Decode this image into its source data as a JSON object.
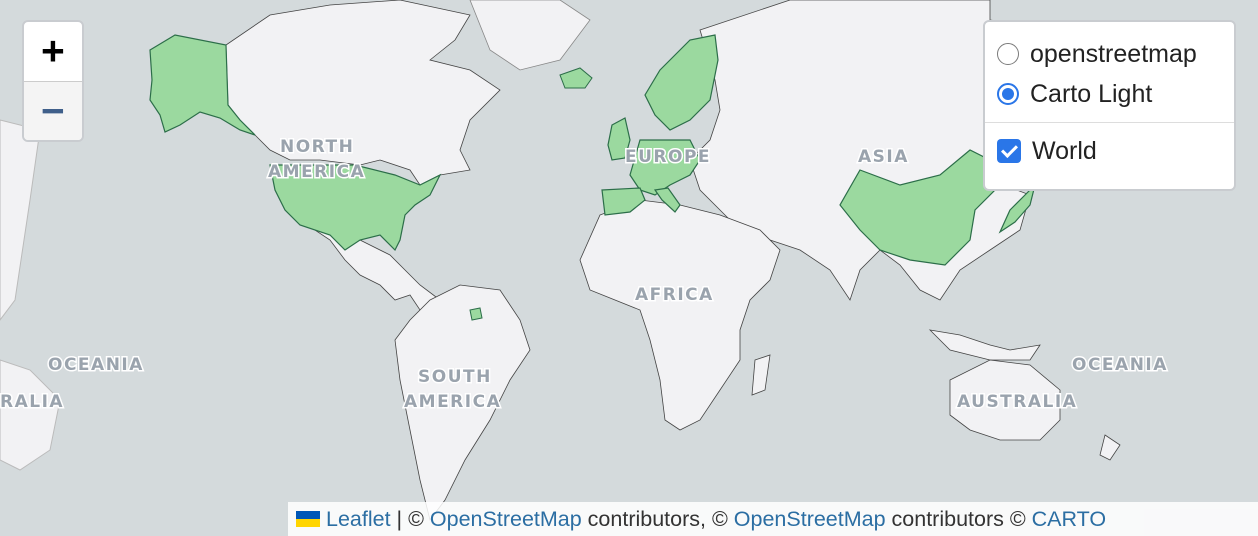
{
  "map": {
    "ocean_color": "#d4dadc",
    "land_color": "#f2f2f4",
    "highlight_fill": "#9bd99f",
    "highlight_stroke": "#2c6e49",
    "border_color": "#444444",
    "labels": {
      "north_america_1": "NORTH",
      "north_america_2": "AMERICA",
      "south_america_1": "SOUTH",
      "south_america_2": "AMERICA",
      "europe": "EUROPE",
      "asia": "ASIA",
      "africa": "AFRICA",
      "oceania_left": "OCEANIA",
      "oceania_right": "OCEANIA",
      "australia_left": "RALIA",
      "australia_right": "AUSTRALIA"
    },
    "highlighted_countries": [
      "United States",
      "Alaska",
      "Greenland",
      "Iceland",
      "Norway",
      "Sweden",
      "Finland",
      "United Kingdom",
      "Ireland",
      "France",
      "Spain",
      "Portugal",
      "Germany",
      "Italy",
      "Netherlands",
      "Belgium",
      "Denmark",
      "Poland",
      "China",
      "Japan",
      "French Guiana"
    ]
  },
  "zoom": {
    "in_label": "+",
    "out_label": "−"
  },
  "layers": {
    "base": [
      {
        "label": "openstreetmap",
        "checked": false
      },
      {
        "label": "Carto Light",
        "checked": true
      }
    ],
    "overlays": [
      {
        "label": "World",
        "checked": true
      }
    ]
  },
  "attribution": {
    "leaflet": "Leaflet",
    "sep1": " | © ",
    "osm1": "OpenStreetMap",
    "mid": " contributors, © ",
    "osm2": "OpenStreetMap",
    "mid2": " contributors © ",
    "carto": "CARTO"
  },
  "icons": {
    "flag": "ukraine-flag-icon"
  }
}
